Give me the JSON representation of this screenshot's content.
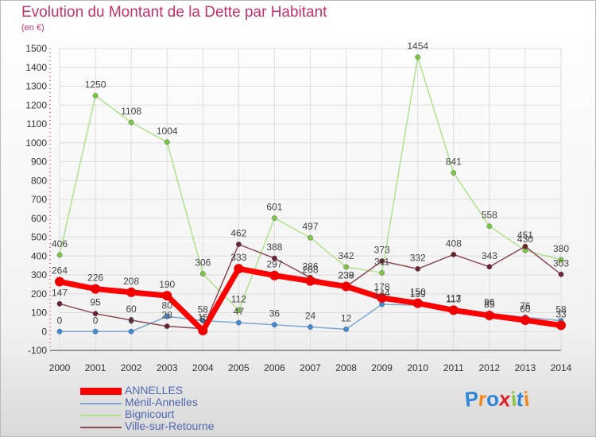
{
  "title": "Evolution du Montant de la Dette par Habitant",
  "unit": "(en €)",
  "logo": "Proxiti",
  "colors": {
    "title": "#c4326e",
    "grid": "#dddddd",
    "legend_text": "#4f67b0"
  },
  "chart_data": {
    "type": "line",
    "title": "Evolution du Montant de la Dette par Habitant",
    "ylabel": "(en €)",
    "xlabel": "",
    "ylim": [
      -100,
      1500
    ],
    "y_ticks": [
      -100,
      0,
      100,
      200,
      300,
      400,
      500,
      600,
      700,
      800,
      900,
      1000,
      1100,
      1200,
      1300,
      1400,
      1500
    ],
    "grid": true,
    "legend_placement": "bottom-left",
    "x": [
      "2000",
      "2001",
      "2002",
      "2003",
      "2004",
      "2005",
      "2006",
      "2007",
      "2008",
      "2009",
      "2010",
      "2011",
      "2012",
      "2013",
      "2014"
    ],
    "series": [
      {
        "name": "Ménil-Annelles",
        "color": "#7fa8d0",
        "marker": "#3f8ad3",
        "width": 1.5,
        "values": [
          0,
          0,
          0,
          80,
          58,
          47,
          36,
          24,
          12,
          144,
          139,
          117,
          96,
          76,
          58
        ]
      },
      {
        "name": "Bignicourt",
        "color": "#aee38a",
        "marker": "#7cc444",
        "width": 1.5,
        "values": [
          406,
          1250,
          1108,
          1004,
          306,
          112,
          601,
          497,
          342,
          311,
          1454,
          841,
          558,
          430,
          380
        ]
      },
      {
        "name": "Ville-sur-Retourne",
        "color": "#8a4a55",
        "marker": "#6a2630",
        "width": 1.5,
        "values": [
          147,
          95,
          60,
          28,
          15,
          462,
          388,
          286,
          238,
          373,
          332,
          408,
          343,
          451,
          303
        ]
      },
      {
        "name": "ANNELLES",
        "color": "#ff0000",
        "marker": "#ee0000",
        "width": 7,
        "values": [
          264,
          226,
          208,
          190,
          5,
          333,
          297,
          268,
          239,
          178,
          150,
          113,
          85,
          60,
          33
        ]
      }
    ],
    "legend_order": [
      "ANNELLES",
      "Ménil-Annelles",
      "Bignicourt",
      "Ville-sur-Retourne"
    ]
  }
}
